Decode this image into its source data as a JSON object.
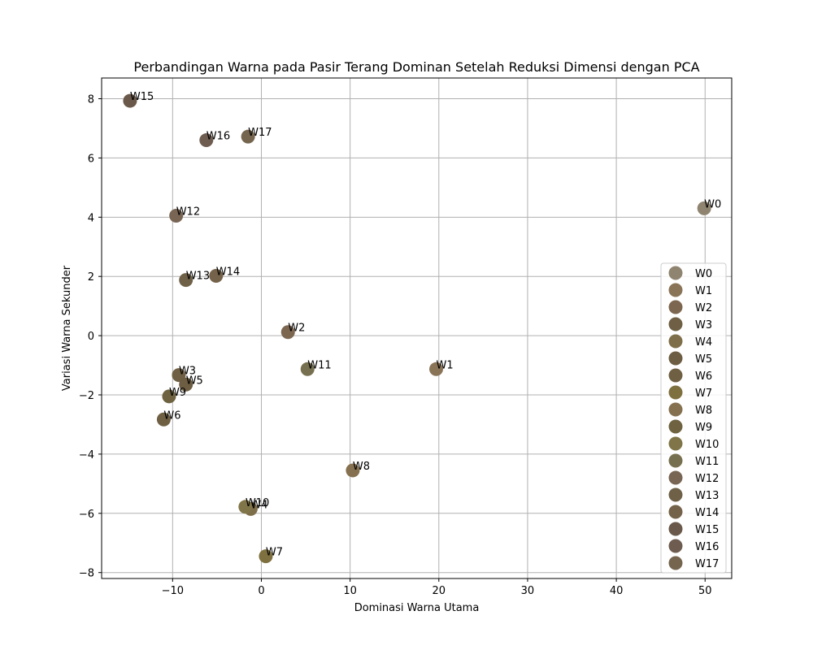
{
  "chart_data": {
    "type": "scatter",
    "title": "Perbandingan Warna pada Pasir Terang Dominan Setelah Reduksi Dimensi dengan PCA",
    "xlabel": "Dominasi Warna Utama",
    "ylabel": "Variasi Warna Sekunder",
    "xlim": [
      -18,
      53
    ],
    "ylim": [
      -8.2,
      8.7
    ],
    "xticks": [
      -10,
      0,
      10,
      20,
      30,
      40,
      50
    ],
    "yticks": [
      -8,
      -6,
      -4,
      -2,
      0,
      2,
      4,
      6,
      8
    ],
    "grid": true,
    "legend_position": "lower-right",
    "series": [
      {
        "name": "W0",
        "x": 49.9,
        "y": 4.3,
        "color": "#8f8470"
      },
      {
        "name": "W1",
        "x": 19.7,
        "y": -1.13,
        "color": "#8a7458"
      },
      {
        "name": "W2",
        "x": 3.0,
        "y": 0.12,
        "color": "#7d6650"
      },
      {
        "name": "W3",
        "x": -9.3,
        "y": -1.33,
        "color": "#6f5f44"
      },
      {
        "name": "W4",
        "x": -1.2,
        "y": -5.85,
        "color": "#7e6e4a"
      },
      {
        "name": "W5",
        "x": -8.5,
        "y": -1.65,
        "color": "#6d5d42"
      },
      {
        "name": "W6",
        "x": -11.0,
        "y": -2.83,
        "color": "#6f6044"
      },
      {
        "name": "W7",
        "x": 0.5,
        "y": -7.45,
        "color": "#7f7040"
      },
      {
        "name": "W8",
        "x": 10.3,
        "y": -4.55,
        "color": "#85704f"
      },
      {
        "name": "W9",
        "x": -10.4,
        "y": -2.05,
        "color": "#6e6240"
      },
      {
        "name": "W10",
        "x": -1.8,
        "y": -5.78,
        "color": "#807548"
      },
      {
        "name": "W11",
        "x": 5.2,
        "y": -1.13,
        "color": "#777050"
      },
      {
        "name": "W12",
        "x": -9.6,
        "y": 4.05,
        "color": "#786554"
      },
      {
        "name": "W13",
        "x": -8.5,
        "y": 1.88,
        "color": "#6f6148"
      },
      {
        "name": "W14",
        "x": -5.1,
        "y": 2.02,
        "color": "#75624a"
      },
      {
        "name": "W15",
        "x": -14.8,
        "y": 7.93,
        "color": "#6a594a"
      },
      {
        "name": "W16",
        "x": -6.2,
        "y": 6.6,
        "color": "#6e5c50"
      },
      {
        "name": "W17",
        "x": -1.5,
        "y": 6.72,
        "color": "#75654f"
      }
    ]
  }
}
